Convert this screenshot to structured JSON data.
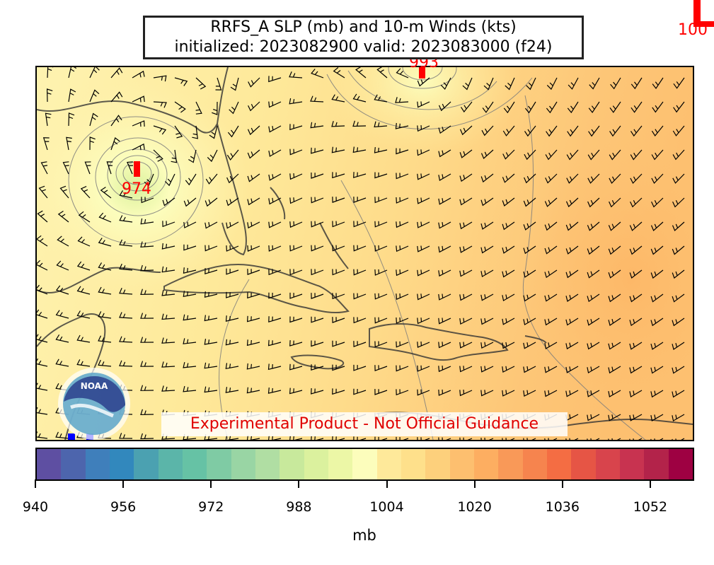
{
  "title": {
    "line1": "RRFS_A SLP (mb) and 10-m Winds (kts)",
    "line2": "initialized: 2023082900 valid: 2023083000 (f24)"
  },
  "disclaimer": "Experimental Product - Not Official Guidance",
  "lows": [
    {
      "label": "974",
      "name": "low-gulf"
    },
    {
      "label": "993",
      "name": "low-atlantic"
    },
    {
      "label": "100",
      "name": "low-offmap-top-right"
    }
  ],
  "logo": {
    "text": "NOAA"
  },
  "colorbar": {
    "unit_label": "mb",
    "min": 940,
    "max": 1060,
    "step": 4,
    "ticks": [
      "940",
      "956",
      "972",
      "988",
      "1004",
      "1020",
      "1036",
      "1052"
    ],
    "colors": [
      "#5e4fa2",
      "#4d65ad",
      "#3f7fbb",
      "#3288bd",
      "#4ba1b1",
      "#5bb5a9",
      "#66c2a5",
      "#7fcba4",
      "#99d5a4",
      "#b0dea3",
      "#c8e99c",
      "#dbf19e",
      "#ecf7a6",
      "#fcfdbc",
      "#fee99a",
      "#fee08b",
      "#fdd07c",
      "#fdbf6f",
      "#fdae61",
      "#f99958",
      "#f6844e",
      "#f46d43",
      "#e65545",
      "#d8444c",
      "#c83350",
      "#b3234a",
      "#9e0142"
    ]
  }
}
